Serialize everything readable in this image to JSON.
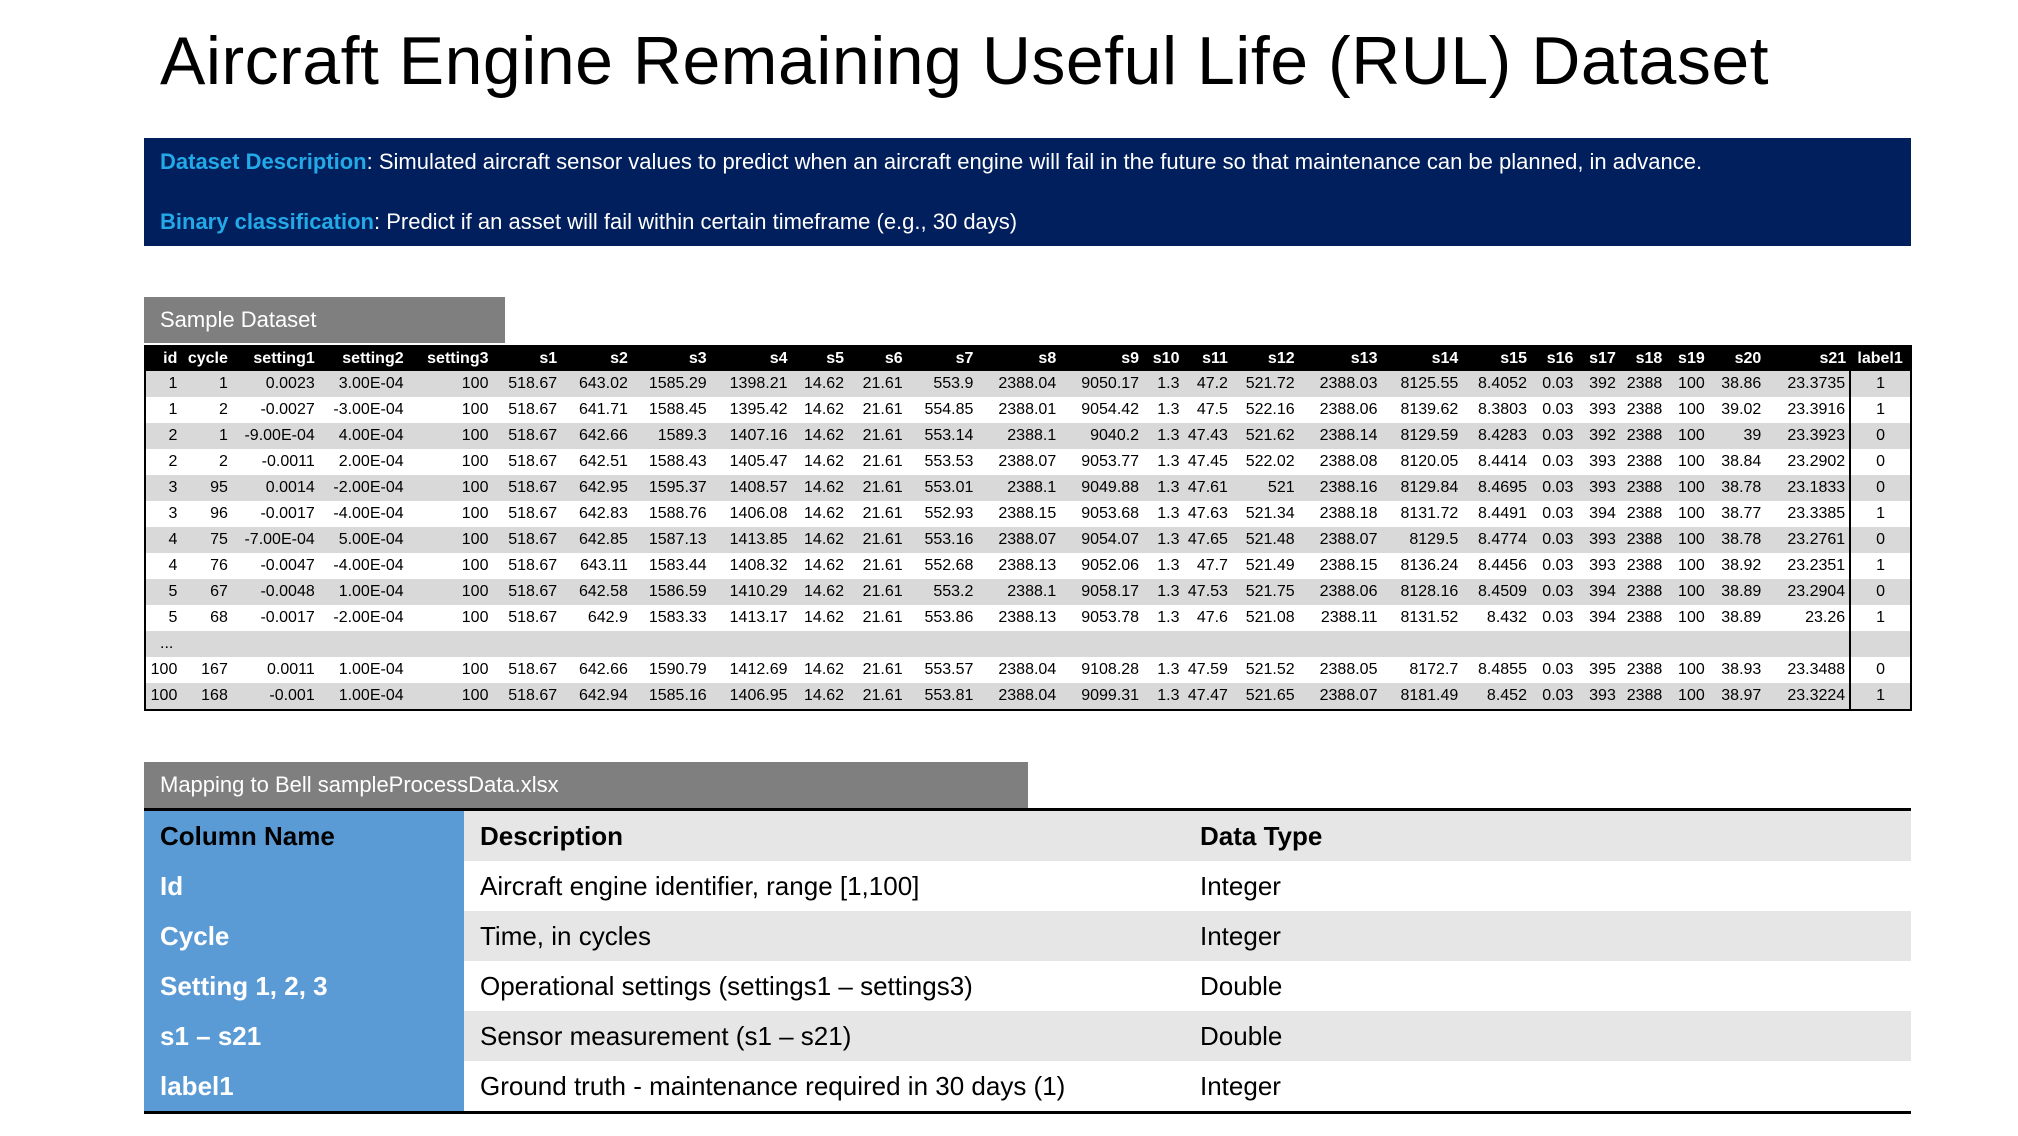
{
  "title": "Aircraft Engine Remaining Useful Life (RUL) Dataset",
  "description": {
    "line1_key": "Dataset Description",
    "line1_text": ": Simulated aircraft sensor values to predict when an aircraft engine will fail in the future so that maintenance can be planned, in advance.",
    "line2_key": "Binary classification",
    "line2_text": ": Predict if an asset will fail within certain timeframe (e.g., 30 days)",
    "colors": {
      "background": "#001f5c",
      "key_text": "#23a9e8"
    }
  },
  "sample": {
    "tab_label": "Sample Dataset",
    "headers": [
      "id",
      "cycle",
      "setting1",
      "setting2",
      "setting3",
      "s1",
      "s2",
      "s3",
      "s4",
      "s5",
      "s6",
      "s7",
      "s8",
      "s9",
      "s10",
      "s11",
      "s12",
      "s13",
      "s14",
      "s15",
      "s16",
      "s17",
      "s18",
      "s19",
      "s20",
      "s21",
      "label1"
    ],
    "rows": [
      [
        "1",
        "1",
        "0.0023",
        "3.00E-04",
        "100",
        "518.67",
        "643.02",
        "1585.29",
        "1398.21",
        "14.62",
        "21.61",
        "553.9",
        "2388.04",
        "9050.17",
        "1.3",
        "47.2",
        "521.72",
        "2388.03",
        "8125.55",
        "8.4052",
        "0.03",
        "392",
        "2388",
        "100",
        "38.86",
        "23.3735",
        "1"
      ],
      [
        "1",
        "2",
        "-0.0027",
        "-3.00E-04",
        "100",
        "518.67",
        "641.71",
        "1588.45",
        "1395.42",
        "14.62",
        "21.61",
        "554.85",
        "2388.01",
        "9054.42",
        "1.3",
        "47.5",
        "522.16",
        "2388.06",
        "8139.62",
        "8.3803",
        "0.03",
        "393",
        "2388",
        "100",
        "39.02",
        "23.3916",
        "1"
      ],
      [
        "2",
        "1",
        "-9.00E-04",
        "4.00E-04",
        "100",
        "518.67",
        "642.66",
        "1589.3",
        "1407.16",
        "14.62",
        "21.61",
        "553.14",
        "2388.1",
        "9040.2",
        "1.3",
        "47.43",
        "521.62",
        "2388.14",
        "8129.59",
        "8.4283",
        "0.03",
        "392",
        "2388",
        "100",
        "39",
        "23.3923",
        "0"
      ],
      [
        "2",
        "2",
        "-0.0011",
        "2.00E-04",
        "100",
        "518.67",
        "642.51",
        "1588.43",
        "1405.47",
        "14.62",
        "21.61",
        "553.53",
        "2388.07",
        "9053.77",
        "1.3",
        "47.45",
        "522.02",
        "2388.08",
        "8120.05",
        "8.4414",
        "0.03",
        "393",
        "2388",
        "100",
        "38.84",
        "23.2902",
        "0"
      ],
      [
        "3",
        "95",
        "0.0014",
        "-2.00E-04",
        "100",
        "518.67",
        "642.95",
        "1595.37",
        "1408.57",
        "14.62",
        "21.61",
        "553.01",
        "2388.1",
        "9049.88",
        "1.3",
        "47.61",
        "521",
        "2388.16",
        "8129.84",
        "8.4695",
        "0.03",
        "393",
        "2388",
        "100",
        "38.78",
        "23.1833",
        "0"
      ],
      [
        "3",
        "96",
        "-0.0017",
        "-4.00E-04",
        "100",
        "518.67",
        "642.83",
        "1588.76",
        "1406.08",
        "14.62",
        "21.61",
        "552.93",
        "2388.15",
        "9053.68",
        "1.3",
        "47.63",
        "521.34",
        "2388.18",
        "8131.72",
        "8.4491",
        "0.03",
        "394",
        "2388",
        "100",
        "38.77",
        "23.3385",
        "1"
      ],
      [
        "4",
        "75",
        "-7.00E-04",
        "5.00E-04",
        "100",
        "518.67",
        "642.85",
        "1587.13",
        "1413.85",
        "14.62",
        "21.61",
        "553.16",
        "2388.07",
        "9054.07",
        "1.3",
        "47.65",
        "521.48",
        "2388.07",
        "8129.5",
        "8.4774",
        "0.03",
        "393",
        "2388",
        "100",
        "38.78",
        "23.2761",
        "0"
      ],
      [
        "4",
        "76",
        "-0.0047",
        "-4.00E-04",
        "100",
        "518.67",
        "643.11",
        "1583.44",
        "1408.32",
        "14.62",
        "21.61",
        "552.68",
        "2388.13",
        "9052.06",
        "1.3",
        "47.7",
        "521.49",
        "2388.15",
        "8136.24",
        "8.4456",
        "0.03",
        "393",
        "2388",
        "100",
        "38.92",
        "23.2351",
        "1"
      ],
      [
        "5",
        "67",
        "-0.0048",
        "1.00E-04",
        "100",
        "518.67",
        "642.58",
        "1586.59",
        "1410.29",
        "14.62",
        "21.61",
        "553.2",
        "2388.1",
        "9058.17",
        "1.3",
        "47.53",
        "521.75",
        "2388.06",
        "8128.16",
        "8.4509",
        "0.03",
        "394",
        "2388",
        "100",
        "38.89",
        "23.2904",
        "0"
      ],
      [
        "5",
        "68",
        "-0.0017",
        "-2.00E-04",
        "100",
        "518.67",
        "642.9",
        "1583.33",
        "1413.17",
        "14.62",
        "21.61",
        "553.86",
        "2388.13",
        "9053.78",
        "1.3",
        "47.6",
        "521.08",
        "2388.11",
        "8131.52",
        "8.432",
        "0.03",
        "394",
        "2388",
        "100",
        "38.89",
        "23.26",
        "1"
      ]
    ],
    "ellipsis": "...",
    "tail_rows": [
      [
        "100",
        "167",
        "0.0011",
        "1.00E-04",
        "100",
        "518.67",
        "642.66",
        "1590.79",
        "1412.69",
        "14.62",
        "21.61",
        "553.57",
        "2388.04",
        "9108.28",
        "1.3",
        "47.59",
        "521.52",
        "2388.05",
        "8172.7",
        "8.4855",
        "0.03",
        "395",
        "2388",
        "100",
        "38.93",
        "23.3488",
        "0"
      ],
      [
        "100",
        "168",
        "-0.001",
        "1.00E-04",
        "100",
        "518.67",
        "642.94",
        "1585.16",
        "1406.95",
        "14.62",
        "21.61",
        "553.81",
        "2388.04",
        "9099.31",
        "1.3",
        "47.47",
        "521.65",
        "2388.07",
        "8181.49",
        "8.452",
        "0.03",
        "393",
        "2388",
        "100",
        "38.97",
        "23.3224",
        "1"
      ]
    ]
  },
  "mapping": {
    "tab_label": "Mapping to Bell sampleProcessData.xlsx",
    "headers": {
      "name": "Column Name",
      "description": "Description",
      "type": "Data Type"
    },
    "rows": [
      {
        "name": "Id",
        "description": "Aircraft engine identifier, range [1,100]",
        "type": "Integer"
      },
      {
        "name": "Cycle",
        "description": "Time, in cycles",
        "type": "Integer"
      },
      {
        "name": "Setting 1, 2, 3",
        "description": "Operational settings (settings1 – settings3)",
        "type": "Double"
      },
      {
        "name": "s1 – s21",
        "description": "Sensor measurement (s1 – s21)",
        "type": "Double"
      },
      {
        "name": "label1",
        "description": "Ground truth - maintenance required in 30 days (1)",
        "type": "Integer"
      }
    ],
    "colors": {
      "name_column": "#5b9bd5"
    }
  }
}
